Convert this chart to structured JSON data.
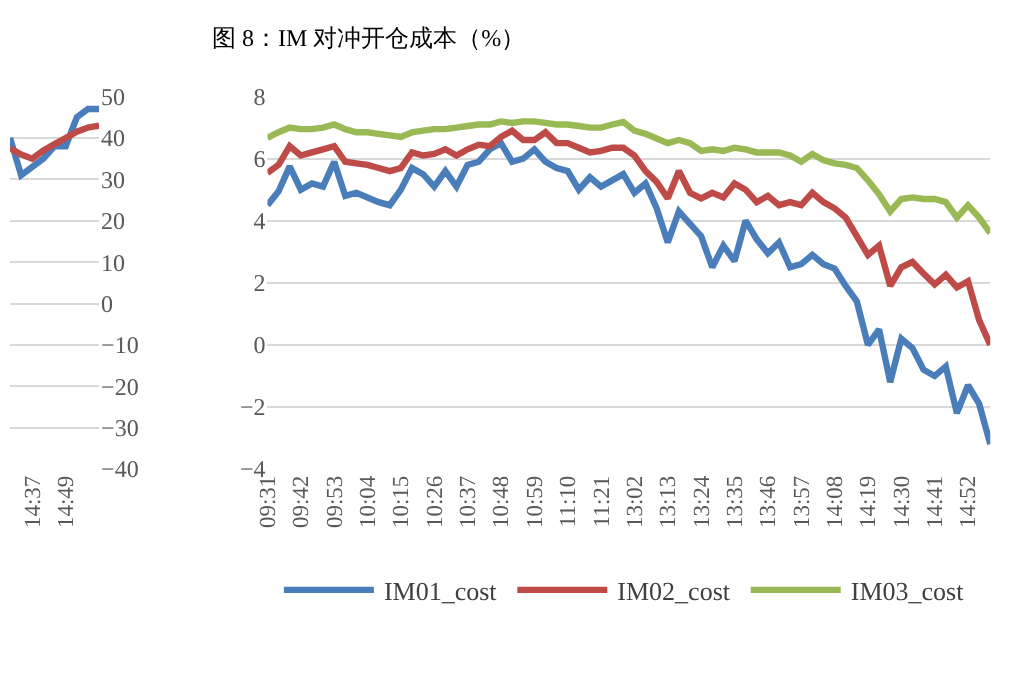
{
  "chart_data": [
    {
      "type": "line",
      "categories": [
        null,
        null,
        "14:37",
        null,
        null,
        "14:49",
        null,
        null,
        null
      ],
      "series": [
        {
          "color": "#4a7ebb",
          "values": [
            40,
            31,
            33,
            35,
            38,
            38,
            45,
            47,
            47
          ]
        },
        {
          "color": "#be4b48",
          "values": [
            37.5,
            36,
            35,
            37,
            38.5,
            40,
            41.5,
            42.5,
            43
          ]
        }
      ],
      "ylim": [
        -40,
        50
      ],
      "yticks": [
        -40,
        -30,
        -20,
        -10,
        0,
        10,
        20,
        30,
        40,
        50
      ],
      "grid": "y",
      "legend": false
    },
    {
      "type": "line",
      "title": "图 8：IM 对冲开仓成本（%）",
      "categories": [
        "09:31",
        null,
        null,
        "09:42",
        null,
        null,
        "09:53",
        null,
        null,
        "10:04",
        null,
        null,
        "10:15",
        null,
        null,
        "10:26",
        null,
        null,
        "10:37",
        null,
        null,
        "10:48",
        null,
        null,
        "10:59",
        null,
        null,
        "11:10",
        null,
        null,
        "11:21",
        null,
        null,
        "13:02",
        null,
        null,
        "13:13",
        null,
        null,
        "13:24",
        null,
        null,
        "13:35",
        null,
        null,
        "13:46",
        null,
        null,
        "13:57",
        null,
        null,
        "14:08",
        null,
        null,
        "14:19",
        null,
        null,
        "14:30",
        null,
        null,
        "14:41",
        null,
        null,
        "14:52",
        null,
        null
      ],
      "series": [
        {
          "name": "IM01_cost",
          "color": "#4a7ebb",
          "values": [
            4.5,
            4.95,
            5.75,
            5.0,
            5.2,
            5.1,
            5.9,
            4.8,
            4.9,
            4.75,
            4.6,
            4.5,
            5.0,
            5.7,
            5.5,
            5.1,
            5.6,
            5.1,
            5.8,
            5.9,
            6.3,
            6.5,
            5.9,
            6.0,
            6.3,
            5.9,
            5.7,
            5.6,
            5.0,
            5.4,
            5.1,
            5.3,
            5.5,
            4.9,
            5.2,
            4.4,
            3.3,
            4.3,
            3.9,
            3.5,
            2.5,
            3.2,
            2.7,
            4.0,
            3.4,
            2.95,
            3.3,
            2.5,
            2.6,
            2.9,
            2.6,
            2.46,
            1.9,
            1.4,
            0.0,
            0.5,
            -1.2,
            0.2,
            -0.1,
            -0.8,
            -1.0,
            -0.7,
            -2.2,
            -1.3,
            -1.9,
            -3.2
          ]
        },
        {
          "name": "IM02_cost",
          "color": "#be4b48",
          "values": [
            5.54,
            5.8,
            6.4,
            6.1,
            6.2,
            6.3,
            6.4,
            5.9,
            5.85,
            5.8,
            5.7,
            5.6,
            5.7,
            6.2,
            6.1,
            6.15,
            6.3,
            6.1,
            6.3,
            6.45,
            6.4,
            6.7,
            6.9,
            6.6,
            6.6,
            6.85,
            6.5,
            6.5,
            6.35,
            6.2,
            6.25,
            6.35,
            6.35,
            6.1,
            5.6,
            5.25,
            4.72,
            5.6,
            4.9,
            4.72,
            4.9,
            4.75,
            5.2,
            5.0,
            4.6,
            4.8,
            4.5,
            4.6,
            4.5,
            4.9,
            4.6,
            4.4,
            4.1,
            3.5,
            2.9,
            3.2,
            1.9,
            2.5,
            2.67,
            2.3,
            1.95,
            2.26,
            1.85,
            2.05,
            0.8,
            0.0
          ]
        },
        {
          "name": "IM03_cost",
          "color": "#98b954",
          "values": [
            6.67,
            6.85,
            7.0,
            6.95,
            6.95,
            7.0,
            7.1,
            6.95,
            6.85,
            6.85,
            6.8,
            6.75,
            6.7,
            6.85,
            6.9,
            6.95,
            6.95,
            7.0,
            7.05,
            7.1,
            7.1,
            7.2,
            7.15,
            7.2,
            7.2,
            7.15,
            7.1,
            7.1,
            7.05,
            7.0,
            7.0,
            7.1,
            7.18,
            6.9,
            6.8,
            6.65,
            6.5,
            6.6,
            6.5,
            6.25,
            6.3,
            6.25,
            6.35,
            6.3,
            6.2,
            6.2,
            6.2,
            6.1,
            5.9,
            6.15,
            5.95,
            5.85,
            5.8,
            5.7,
            5.3,
            4.85,
            4.3,
            4.7,
            4.75,
            4.7,
            4.7,
            4.6,
            4.1,
            4.5,
            4.1,
            3.6
          ]
        }
      ],
      "ylim": [
        -4,
        8
      ],
      "yticks": [
        -4,
        -2,
        0,
        2,
        4,
        6,
        8
      ],
      "grid": "y",
      "legend": "bottom"
    }
  ]
}
